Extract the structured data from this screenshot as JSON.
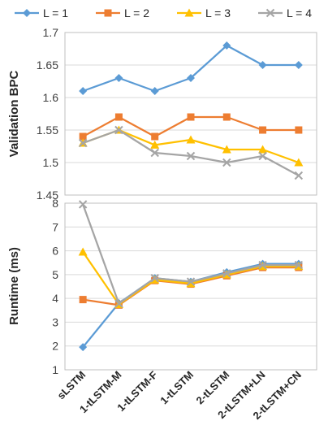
{
  "chart_data": [
    {
      "type": "line",
      "title": "",
      "xlabel": "",
      "ylabel": "Validation BPC",
      "categories": [
        "sLSTM",
        "1-tLSTM-M",
        "1-tLSTM-F",
        "1-tLSTM",
        "2-tLSTM",
        "2-tLSTM+LN",
        "2-tLSTM+CN"
      ],
      "ylim": [
        1.45,
        1.7
      ],
      "yticks": [
        "1.45",
        "1.5",
        "1.55",
        "1.6",
        "1.65",
        "1.7"
      ],
      "grid": true,
      "legend": "top",
      "series": [
        {
          "name": "L = 1",
          "color": "#5b9bd5",
          "marker": "diamond",
          "values": [
            1.61,
            1.63,
            1.61,
            1.63,
            1.68,
            1.65,
            1.65
          ]
        },
        {
          "name": "L = 2",
          "color": "#ed7d31",
          "marker": "square",
          "values": [
            1.54,
            1.57,
            1.54,
            1.57,
            1.57,
            1.55,
            1.55
          ]
        },
        {
          "name": "L = 3",
          "color": "#ffc000",
          "marker": "triangle",
          "values": [
            1.53,
            1.55,
            1.527,
            1.535,
            1.52,
            1.52,
            1.5
          ]
        },
        {
          "name": "L = 4",
          "color": "#a5a5a5",
          "marker": "x",
          "values": [
            1.53,
            1.55,
            1.515,
            1.51,
            1.5,
            1.51,
            1.48
          ]
        }
      ]
    },
    {
      "type": "line",
      "title": "",
      "xlabel": "",
      "ylabel": "Runtime (ms)",
      "categories": [
        "sLSTM",
        "1-tLSTM-M",
        "1-tLSTM-F",
        "1-tLSTM",
        "2-tLSTM",
        "2-tLSTM+LN",
        "2-tLSTM+CN"
      ],
      "ylim": [
        1,
        8
      ],
      "yticks": [
        "1",
        "2",
        "3",
        "4",
        "5",
        "6",
        "7",
        "8"
      ],
      "grid": true,
      "series": [
        {
          "name": "L = 1",
          "color": "#5b9bd5",
          "marker": "diamond",
          "values": [
            1.95,
            3.8,
            4.85,
            4.7,
            5.1,
            5.45,
            5.45
          ]
        },
        {
          "name": "L = 2",
          "color": "#ed7d31",
          "marker": "square",
          "values": [
            3.95,
            3.72,
            4.75,
            4.6,
            4.95,
            5.3,
            5.3
          ]
        },
        {
          "name": "L = 3",
          "color": "#ffc000",
          "marker": "triangle",
          "values": [
            5.95,
            3.75,
            4.78,
            4.63,
            5.0,
            5.35,
            5.35
          ]
        },
        {
          "name": "L = 4",
          "color": "#a5a5a5",
          "marker": "x",
          "values": [
            7.95,
            3.78,
            4.85,
            4.7,
            5.05,
            5.4,
            5.4
          ]
        }
      ]
    }
  ]
}
